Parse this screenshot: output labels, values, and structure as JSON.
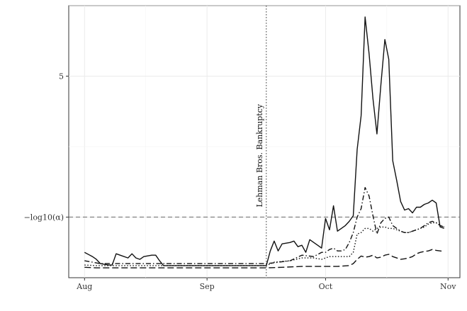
{
  "chart_data": {
    "type": "line",
    "title": "",
    "xlabel": "",
    "ylabel": "",
    "x_ticks": [
      {
        "label": "Aug",
        "day": 0
      },
      {
        "label": "Sep",
        "day": 31
      },
      {
        "label": "Oct",
        "day": 61
      },
      {
        "label": "Nov",
        "day": 92
      }
    ],
    "y_ticks": [
      {
        "label": "5",
        "value": 5
      },
      {
        "label": "−log10(α)",
        "value": 0
      }
    ],
    "xlim": [
      -4,
      95
    ],
    "ylim": [
      -2.15,
      7.5
    ],
    "grid": true,
    "threshold": {
      "value": 0,
      "label": "−log10(α)",
      "style": "dashed"
    },
    "event": {
      "day": 46,
      "label": "Lehman Bros. Bankruptcy",
      "style": "dotted"
    },
    "series": [
      {
        "dash": "solid",
        "points": [
          [
            0,
            -1.25
          ],
          [
            2,
            -1.4
          ],
          [
            3,
            -1.5
          ],
          [
            4,
            -1.65
          ],
          [
            6,
            -1.7
          ],
          [
            7,
            -1.7
          ],
          [
            8,
            -1.3
          ],
          [
            9,
            -1.35
          ],
          [
            11,
            -1.45
          ],
          [
            12,
            -1.3
          ],
          [
            13,
            -1.45
          ],
          [
            14,
            -1.5
          ],
          [
            15,
            -1.4
          ],
          [
            17,
            -1.35
          ],
          [
            18,
            -1.35
          ],
          [
            19,
            -1.55
          ],
          [
            20,
            -1.72
          ],
          [
            25,
            -1.72
          ],
          [
            30,
            -1.72
          ],
          [
            35,
            -1.72
          ],
          [
            40,
            -1.72
          ],
          [
            45,
            -1.72
          ],
          [
            46,
            -1.72
          ],
          [
            47,
            -1.2
          ],
          [
            48,
            -0.85
          ],
          [
            49,
            -1.2
          ],
          [
            50,
            -0.95
          ],
          [
            52,
            -0.9
          ],
          [
            53,
            -0.85
          ],
          [
            54,
            -1.05
          ],
          [
            55,
            -1.0
          ],
          [
            56,
            -1.25
          ],
          [
            57,
            -0.8
          ],
          [
            59,
            -1.0
          ],
          [
            60,
            -1.1
          ],
          [
            61,
            -0.05
          ],
          [
            62,
            -0.45
          ],
          [
            63,
            0.4
          ],
          [
            64,
            -0.5
          ],
          [
            65,
            -0.4
          ],
          [
            66,
            -0.3
          ],
          [
            67,
            -0.15
          ],
          [
            68,
            0.05
          ],
          [
            69,
            2.4
          ],
          [
            70,
            3.6
          ],
          [
            71,
            7.1
          ],
          [
            72,
            5.8
          ],
          [
            73,
            4.2
          ],
          [
            74,
            2.95
          ],
          [
            75,
            4.7
          ],
          [
            76,
            6.3
          ],
          [
            77,
            5.6
          ],
          [
            78,
            2.0
          ],
          [
            79,
            1.3
          ],
          [
            80,
            0.55
          ],
          [
            81,
            0.25
          ],
          [
            82,
            0.3
          ],
          [
            83,
            0.15
          ],
          [
            84,
            0.35
          ],
          [
            85,
            0.35
          ],
          [
            86,
            0.45
          ],
          [
            87,
            0.5
          ],
          [
            88,
            0.6
          ],
          [
            89,
            0.5
          ],
          [
            90,
            -0.35
          ],
          [
            91,
            -0.4
          ]
        ]
      },
      {
        "dash": "dotdash",
        "points": [
          [
            0,
            -1.55
          ],
          [
            2,
            -1.6
          ],
          [
            4,
            -1.65
          ],
          [
            10,
            -1.65
          ],
          [
            20,
            -1.65
          ],
          [
            30,
            -1.65
          ],
          [
            40,
            -1.65
          ],
          [
            46,
            -1.65
          ],
          [
            48,
            -1.62
          ],
          [
            52,
            -1.55
          ],
          [
            55,
            -1.35
          ],
          [
            58,
            -1.4
          ],
          [
            60,
            -1.25
          ],
          [
            61,
            -1.25
          ],
          [
            62,
            -1.15
          ],
          [
            63,
            -1.1
          ],
          [
            64,
            -1.2
          ],
          [
            65,
            -1.2
          ],
          [
            66,
            -1.15
          ],
          [
            67,
            -0.9
          ],
          [
            68,
            -0.55
          ],
          [
            69,
            0.0
          ],
          [
            70,
            0.3
          ],
          [
            71,
            1.05
          ],
          [
            72,
            0.75
          ],
          [
            73,
            0.05
          ],
          [
            74,
            -0.6
          ],
          [
            75,
            -0.2
          ],
          [
            76,
            -0.05
          ],
          [
            77,
            0.0
          ],
          [
            78,
            -0.3
          ],
          [
            79,
            -0.4
          ],
          [
            80,
            -0.5
          ],
          [
            81,
            -0.55
          ],
          [
            82,
            -0.55
          ],
          [
            83,
            -0.5
          ],
          [
            84,
            -0.45
          ],
          [
            85,
            -0.4
          ],
          [
            86,
            -0.3
          ],
          [
            87,
            -0.2
          ],
          [
            88,
            -0.15
          ],
          [
            89,
            -0.2
          ],
          [
            90,
            -0.3
          ],
          [
            91,
            -0.35
          ]
        ]
      },
      {
        "dash": "dotted",
        "points": [
          [
            0,
            -1.7
          ],
          [
            3,
            -1.72
          ],
          [
            10,
            -1.72
          ],
          [
            20,
            -1.72
          ],
          [
            30,
            -1.72
          ],
          [
            40,
            -1.72
          ],
          [
            46,
            -1.72
          ],
          [
            48,
            -1.6
          ],
          [
            52,
            -1.55
          ],
          [
            55,
            -1.45
          ],
          [
            58,
            -1.45
          ],
          [
            60,
            -1.5
          ],
          [
            61,
            -1.45
          ],
          [
            62,
            -1.4
          ],
          [
            65,
            -1.4
          ],
          [
            67,
            -1.4
          ],
          [
            68,
            -1.25
          ],
          [
            69,
            -0.6
          ],
          [
            70,
            -0.55
          ],
          [
            71,
            -0.4
          ],
          [
            72,
            -0.4
          ],
          [
            73,
            -0.5
          ],
          [
            74,
            -0.4
          ],
          [
            75,
            -0.35
          ],
          [
            76,
            -0.35
          ],
          [
            77,
            -0.4
          ],
          [
            78,
            -0.4
          ],
          [
            79,
            -0.45
          ],
          [
            80,
            -0.5
          ],
          [
            81,
            -0.55
          ],
          [
            82,
            -0.55
          ],
          [
            83,
            -0.5
          ],
          [
            84,
            -0.45
          ],
          [
            85,
            -0.4
          ],
          [
            86,
            -0.35
          ],
          [
            87,
            -0.25
          ],
          [
            88,
            -0.2
          ],
          [
            89,
            -0.2
          ],
          [
            90,
            -0.3
          ],
          [
            91,
            -0.35
          ]
        ]
      },
      {
        "dash": "longdash",
        "points": [
          [
            0,
            -1.78
          ],
          [
            3,
            -1.8
          ],
          [
            10,
            -1.8
          ],
          [
            20,
            -1.8
          ],
          [
            30,
            -1.8
          ],
          [
            40,
            -1.8
          ],
          [
            46,
            -1.8
          ],
          [
            50,
            -1.78
          ],
          [
            55,
            -1.75
          ],
          [
            60,
            -1.75
          ],
          [
            64,
            -1.75
          ],
          [
            67,
            -1.72
          ],
          [
            68,
            -1.65
          ],
          [
            69,
            -1.5
          ],
          [
            70,
            -1.38
          ],
          [
            71,
            -1.42
          ],
          [
            72,
            -1.4
          ],
          [
            73,
            -1.35
          ],
          [
            74,
            -1.45
          ],
          [
            75,
            -1.42
          ],
          [
            76,
            -1.35
          ],
          [
            77,
            -1.32
          ],
          [
            78,
            -1.4
          ],
          [
            79,
            -1.45
          ],
          [
            80,
            -1.5
          ],
          [
            81,
            -1.48
          ],
          [
            82,
            -1.45
          ],
          [
            83,
            -1.4
          ],
          [
            84,
            -1.3
          ],
          [
            85,
            -1.25
          ],
          [
            86,
            -1.22
          ],
          [
            87,
            -1.2
          ],
          [
            88,
            -1.15
          ],
          [
            89,
            -1.18
          ],
          [
            90,
            -1.2
          ],
          [
            91,
            -1.22
          ]
        ]
      }
    ]
  }
}
